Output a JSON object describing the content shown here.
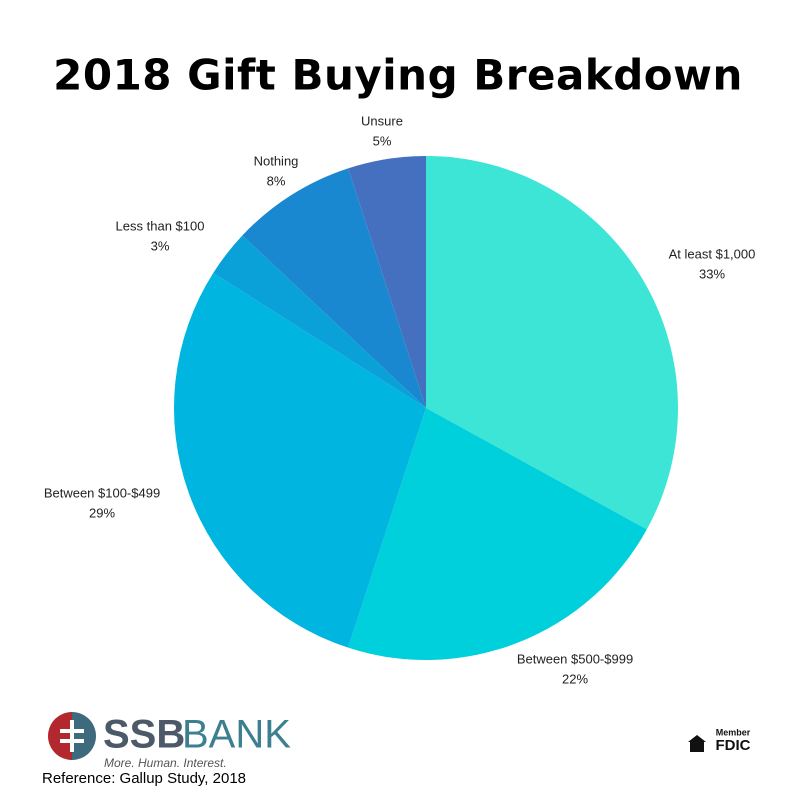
{
  "chart_data": {
    "type": "pie",
    "title": "2018 Gift Buying Breakdown",
    "categories": [
      "At least $1,000",
      "Between $500-$999",
      "Between $100-$499",
      "Less than $100",
      "Nothing",
      "Unsure"
    ],
    "values": [
      33,
      22,
      29,
      3,
      8,
      5
    ],
    "value_labels": [
      "33%",
      "22%",
      "29%",
      "3%",
      "8%",
      "5%"
    ],
    "colors": [
      "#3de5d6",
      "#00cfdc",
      "#00b5df",
      "#0aa0d8",
      "#1a88d0",
      "#4570c0"
    ]
  },
  "footer": {
    "brand_bold": "SSB",
    "brand_light": "BANK",
    "tagline": "More. Human. Interest.",
    "reference": "Reference: Gallup Study, 2018",
    "member": "Member",
    "fdic": "FDIC"
  }
}
